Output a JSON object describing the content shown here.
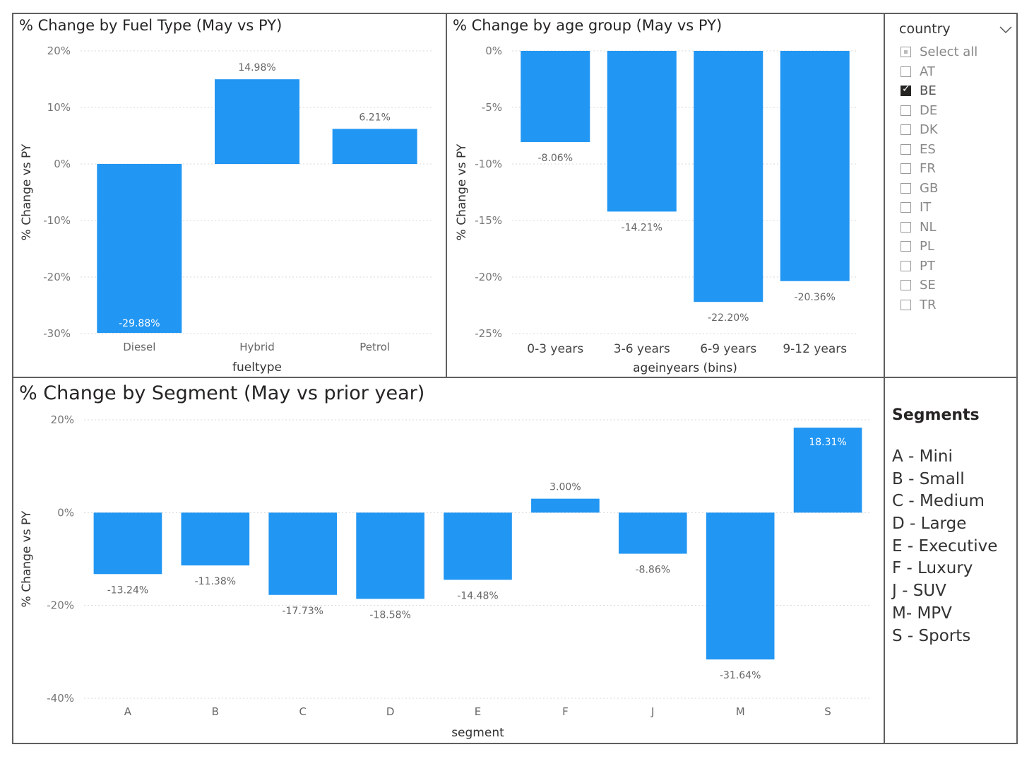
{
  "charts": {
    "fuel": {
      "title": "% Change by Fuel Type (May vs PY)",
      "xlabel": "fueltype",
      "ylabel": "% Change vs PY",
      "ylim": [
        -30,
        20
      ],
      "ticks": [
        20,
        10,
        0,
        -10,
        -20,
        -30
      ],
      "categories": [
        "Diesel",
        "Hybrid",
        "Petrol"
      ],
      "values": [
        -29.88,
        14.98,
        6.21
      ],
      "labels": [
        "-29.88%",
        "14.98%",
        "6.21%"
      ]
    },
    "age": {
      "title": "% Change by age group (May vs PY)",
      "xlabel": "ageinyears (bins)",
      "ylabel": "% Change vs PY",
      "ylim": [
        -25,
        0
      ],
      "ticks": [
        0,
        -5,
        -10,
        -15,
        -20,
        -25
      ],
      "categories": [
        "0-3 years",
        "3-6 years",
        "6-9 years",
        "9-12 years"
      ],
      "values": [
        -8.06,
        -14.21,
        -22.2,
        -20.36
      ],
      "labels": [
        "-8.06%",
        "-14.21%",
        "-22.20%",
        "-20.36%"
      ]
    },
    "segment": {
      "title": "% Change by Segment (May vs prior year)",
      "xlabel": "segment",
      "ylabel": "% Change vs PY",
      "ylim": [
        -40,
        20
      ],
      "ticks": [
        20,
        0,
        -20,
        -40
      ],
      "categories": [
        "A",
        "B",
        "C",
        "D",
        "E",
        "F",
        "J",
        "M",
        "S"
      ],
      "values": [
        -13.24,
        -11.38,
        -17.73,
        -18.58,
        -14.48,
        3.0,
        -8.86,
        -31.64,
        18.31
      ],
      "labels": [
        "-13.24%",
        "-11.38%",
        "-17.73%",
        "-18.58%",
        "-14.48%",
        "3.00%",
        "-8.86%",
        "-31.64%",
        "18.31%"
      ]
    }
  },
  "chart_data": [
    {
      "type": "bar",
      "title": "% Change by Fuel Type (May vs PY)",
      "xlabel": "fueltype",
      "ylabel": "% Change vs PY",
      "categories": [
        "Diesel",
        "Hybrid",
        "Petrol"
      ],
      "values": [
        -29.88,
        14.98,
        6.21
      ],
      "ylim": [
        -30,
        20
      ],
      "grid": true
    },
    {
      "type": "bar",
      "title": "% Change by age group (May vs PY)",
      "xlabel": "ageinyears (bins)",
      "ylabel": "% Change vs PY",
      "categories": [
        "0-3 years",
        "3-6 years",
        "6-9 years",
        "9-12 years"
      ],
      "values": [
        -8.06,
        -14.21,
        -22.2,
        -20.36
      ],
      "ylim": [
        -25,
        0
      ],
      "grid": true
    },
    {
      "type": "bar",
      "title": "% Change by Segment (May vs prior year)",
      "xlabel": "segment",
      "ylabel": "% Change vs PY",
      "categories": [
        "A",
        "B",
        "C",
        "D",
        "E",
        "F",
        "J",
        "M",
        "S"
      ],
      "values": [
        -13.24,
        -11.38,
        -17.73,
        -18.58,
        -14.48,
        3.0,
        -8.86,
        -31.64,
        18.31
      ],
      "ylim": [
        -40,
        20
      ],
      "grid": true
    }
  ],
  "slicer": {
    "title": "country",
    "items": [
      {
        "label": "Select all",
        "state": "partial"
      },
      {
        "label": "AT",
        "state": "unchecked"
      },
      {
        "label": "BE",
        "state": "checked"
      },
      {
        "label": "DE",
        "state": "unchecked"
      },
      {
        "label": "DK",
        "state": "unchecked"
      },
      {
        "label": "ES",
        "state": "unchecked"
      },
      {
        "label": "FR",
        "state": "unchecked"
      },
      {
        "label": "GB",
        "state": "unchecked"
      },
      {
        "label": "IT",
        "state": "unchecked"
      },
      {
        "label": "NL",
        "state": "unchecked"
      },
      {
        "label": "PL",
        "state": "unchecked"
      },
      {
        "label": "PT",
        "state": "unchecked"
      },
      {
        "label": "SE",
        "state": "unchecked"
      },
      {
        "label": "TR",
        "state": "unchecked"
      }
    ]
  },
  "legend": {
    "title": "Segments",
    "items": [
      "A - Mini",
      "B - Small",
      "C - Medium",
      "D - Large",
      "E - Executive",
      "F - Luxury",
      "J - SUV",
      "M- MPV",
      "S - Sports"
    ]
  },
  "colors": {
    "bar": "#2196f3",
    "border": "#5f5f5f"
  },
  "icons": {
    "dropdown": "chevron-down-icon"
  }
}
